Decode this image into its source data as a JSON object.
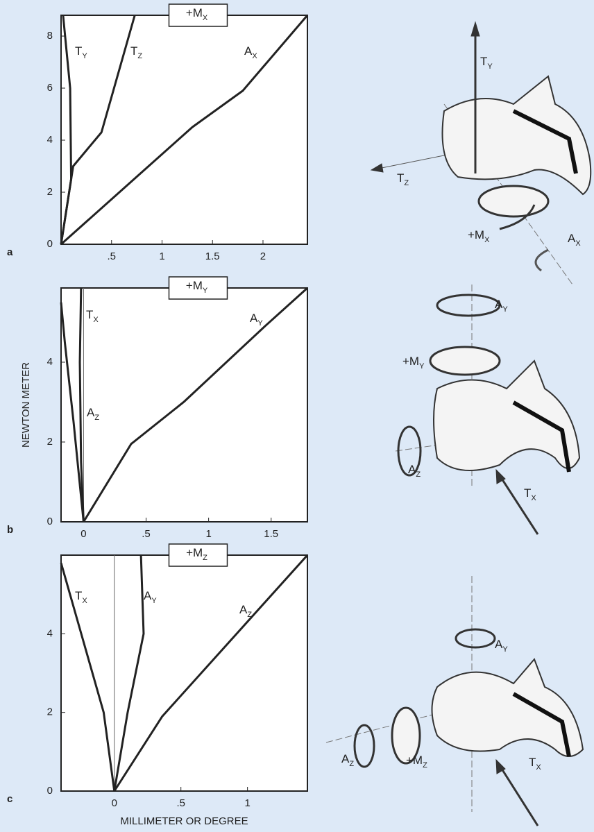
{
  "chart_data": [
    {
      "type": "line",
      "panel": "a",
      "title": "+M",
      "title_sub": "X",
      "xlim": [
        0,
        2.44
      ],
      "ylim": [
        0,
        8.8
      ],
      "xticks": [
        {
          "value": 0.5,
          "label": ".5"
        },
        1,
        1.5,
        2
      ],
      "yticks": [
        0,
        2,
        4,
        6,
        8
      ],
      "series": [
        {
          "label": "T",
          "label_sub": "Y",
          "color": "#222222",
          "x": [
            0,
            0.1,
            0.09,
            0.02
          ],
          "values": [
            0,
            2.5,
            6,
            8.8
          ]
        },
        {
          "label": "T",
          "label_sub": "Z",
          "color": "#222222",
          "x": [
            0,
            0.12,
            0.4,
            0.73
          ],
          "values": [
            0,
            3,
            4.3,
            8.8
          ]
        },
        {
          "label": "A",
          "label_sub": "X",
          "color": "#222222",
          "x": [
            0,
            1.3,
            1.8,
            2.44
          ],
          "values": [
            0,
            4.5,
            5.9,
            8.8
          ]
        }
      ]
    },
    {
      "type": "line",
      "panel": "b",
      "title": "+M",
      "title_sub": "Y",
      "ylabel": "NEWTON METER",
      "xlim": [
        -0.18,
        1.79
      ],
      "ylim": [
        0,
        5.86
      ],
      "xticks": [
        0,
        {
          "value": 0.5,
          "label": ".5"
        },
        1,
        1.5
      ],
      "yticks": [
        0,
        2,
        4
      ],
      "series": [
        {
          "label": "T",
          "label_sub": "X",
          "color": "#222222",
          "x": [
            0,
            -0.02,
            -0.03,
            -0.02
          ],
          "values": [
            0,
            1.5,
            4,
            5.86
          ]
        },
        {
          "label": "A",
          "label_sub": "Z",
          "color": "#222222",
          "x": [
            0,
            -0.08,
            -0.15,
            -0.18
          ],
          "values": [
            0,
            2.5,
            4.5,
            5.5
          ]
        },
        {
          "label": "A",
          "label_sub": "Y",
          "color": "#222222",
          "x": [
            0,
            0.38,
            0.8,
            1.45,
            1.79
          ],
          "values": [
            0,
            1.95,
            3,
            4.9,
            5.86
          ]
        }
      ]
    },
    {
      "type": "line",
      "panel": "c",
      "title": "+M",
      "title_sub": "Z",
      "xlabel": "MILLIMETER OR DEGREE",
      "xlim": [
        -0.4,
        1.45
      ],
      "ylim": [
        0,
        6
      ],
      "xticks": [
        0,
        {
          "value": 0.5,
          "label": ".5"
        },
        1
      ],
      "yticks": [
        0,
        2,
        4
      ],
      "series": [
        {
          "label": "T",
          "label_sub": "X",
          "color": "#222222",
          "x": [
            0,
            -0.02,
            -0.08,
            -0.4
          ],
          "values": [
            0,
            0.5,
            2,
            5.8
          ]
        },
        {
          "label": "A",
          "label_sub": "Y",
          "color": "#222222",
          "x": [
            0,
            0.1,
            0.22,
            0.2
          ],
          "values": [
            0,
            2,
            4,
            6
          ]
        },
        {
          "label": "A",
          "label_sub": "Z",
          "color": "#222222",
          "x": [
            0,
            0.36,
            1.45
          ],
          "values": [
            0,
            1.9,
            6
          ]
        }
      ]
    }
  ],
  "illustrations": [
    {
      "labels": [
        {
          "text": "T",
          "sub": "Y"
        },
        {
          "text": "T",
          "sub": "Z"
        },
        {
          "text": "+M",
          "sub": "X"
        },
        {
          "text": "A",
          "sub": "X"
        }
      ]
    },
    {
      "labels": [
        {
          "text": "A",
          "sub": "Y"
        },
        {
          "text": "+M",
          "sub": "Y"
        },
        {
          "text": "A",
          "sub": "Z"
        },
        {
          "text": "T",
          "sub": "X"
        }
      ]
    },
    {
      "labels": [
        {
          "text": "A",
          "sub": "Y"
        },
        {
          "text": "A",
          "sub": "Z"
        },
        {
          "text": "+M",
          "sub": "Z"
        },
        {
          "text": "T",
          "sub": "X"
        }
      ]
    }
  ]
}
